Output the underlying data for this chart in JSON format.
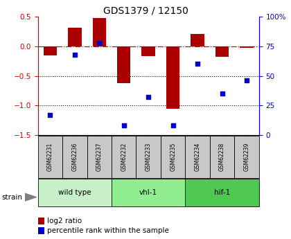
{
  "title": "GDS1379 / 12150",
  "samples": [
    "GSM62231",
    "GSM62236",
    "GSM62237",
    "GSM62232",
    "GSM62233",
    "GSM62235",
    "GSM62234",
    "GSM62238",
    "GSM62239"
  ],
  "log2_ratio": [
    -0.15,
    0.32,
    0.48,
    -0.62,
    -0.17,
    -1.05,
    0.21,
    -0.18,
    -0.03
  ],
  "percentile_rank": [
    17,
    68,
    78,
    8,
    32,
    8,
    60,
    35,
    46
  ],
  "groups": [
    {
      "label": "wild type",
      "start": 0,
      "end": 3,
      "color": "#c8f0c8"
    },
    {
      "label": "vhl-1",
      "start": 3,
      "end": 6,
      "color": "#90ee90"
    },
    {
      "label": "hif-1",
      "start": 6,
      "end": 9,
      "color": "#4ec84e"
    }
  ],
  "ylim_left": [
    -1.5,
    0.5
  ],
  "ylim_right": [
    0,
    100
  ],
  "bar_color": "#aa0000",
  "dot_color": "#0000cc",
  "hline_color": "#cc0000",
  "grid_color": "#000000",
  "axis_color_left": "#cc0000",
  "axis_color_right": "#0000cc",
  "background_color": "#ffffff",
  "legend_bar_label": "log2 ratio",
  "legend_dot_label": "percentile rank within the sample",
  "strain_label": "strain",
  "sample_box_color": "#c8c8c8"
}
